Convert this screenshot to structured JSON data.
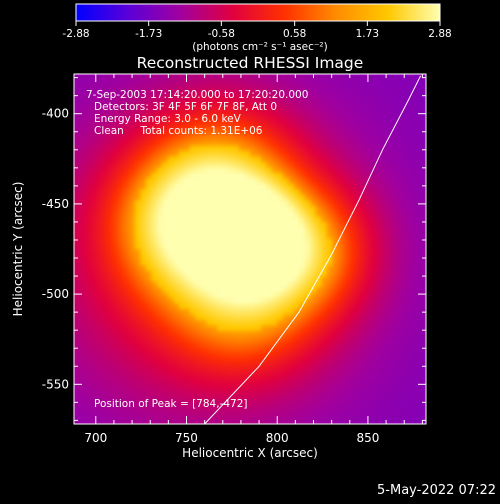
{
  "chart_data": {
    "type": "heatmap",
    "title": "Reconstructed RHESSI Image",
    "xlabel": "Heliocentric X (arcsec)",
    "ylabel": "Heliocentric Y (arcsec)",
    "xlim": [
      688,
      882
    ],
    "ylim": [
      -572,
      -378
    ],
    "x_ticks": [
      700,
      750,
      800,
      850
    ],
    "y_ticks": [
      -400,
      -450,
      -500,
      -550
    ],
    "x_tick_labels": [
      "700",
      "750",
      "800",
      "850"
    ],
    "y_tick_labels": [
      "-400",
      "-450",
      "-500",
      "-550"
    ],
    "colorbar": {
      "range": [
        -2.88,
        2.88
      ],
      "ticks": [
        -2.88,
        -1.73,
        -0.58,
        0.58,
        1.73,
        2.88
      ],
      "tick_labels": [
        "-2.88",
        "-1.73",
        "-0.58",
        "0.58",
        "1.73",
        "2.88"
      ],
      "unit_label": "(photons cm⁻² s⁻¹ asec⁻²)",
      "colormap": [
        "#0000ff",
        "#5a00d8",
        "#a000a0",
        "#e00040",
        "#ff3000",
        "#ff8c00",
        "#ffc800",
        "#ffffb0"
      ]
    },
    "annotations": [
      "7-Sep-2003 17:14:20.000 to 17:20:20.000",
      "Detectors: 3F 4F 5F 6F 7F 8F, Att 0",
      "Energy Range: 3.0 - 6.0 keV",
      "Clean     Total counts: 1.31E+06"
    ],
    "peak_label": "Position of Peak = [784,-472]",
    "peak": [
      784,
      -472
    ],
    "limb_curve": [
      [
        760,
        -572
      ],
      [
        790,
        -540
      ],
      [
        812,
        -510
      ],
      [
        830,
        -478
      ],
      [
        845,
        -448
      ],
      [
        858,
        -420
      ],
      [
        872,
        -393
      ],
      [
        879,
        -379
      ]
    ],
    "sources": [
      {
        "x": 786,
        "y": -468,
        "amp": 1.0,
        "sigma": 18
      },
      {
        "x": 748,
        "y": -462,
        "amp": 0.78,
        "sigma": 26
      },
      {
        "x": 770,
        "y": -438,
        "amp": 0.72,
        "sigma": 28
      },
      {
        "x": 782,
        "y": -500,
        "amp": 0.68,
        "sigma": 28
      },
      {
        "x": 818,
        "y": -475,
        "amp": 0.6,
        "sigma": 24
      },
      {
        "x": 760,
        "y": -480,
        "amp": 0.55,
        "sigma": 60
      }
    ]
  },
  "footer": {
    "date": "5-May-2022 07:22"
  }
}
